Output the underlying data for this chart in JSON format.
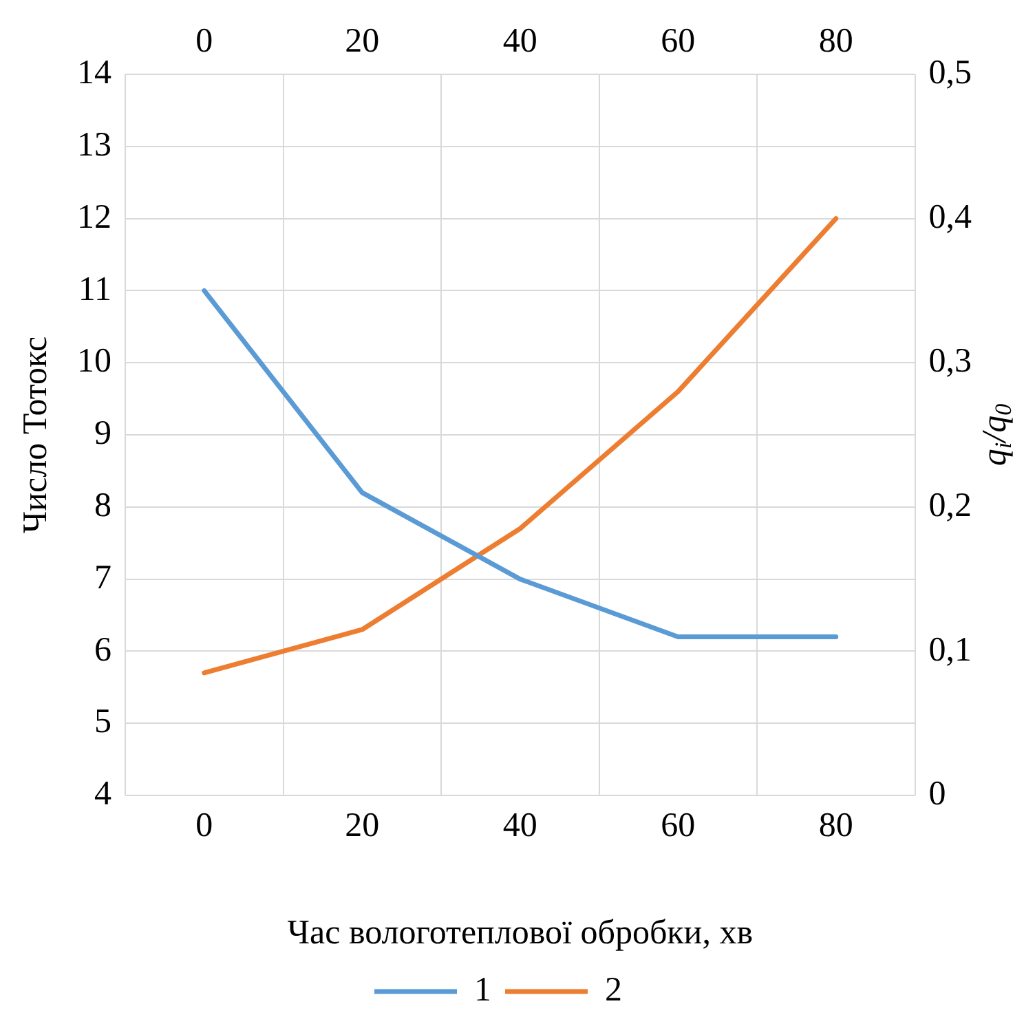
{
  "chart_data": {
    "type": "line",
    "xlabel": "Час вологотеплової обробки, хв",
    "ylabel": "Число Тотокс",
    "y2label": "q$_{i}$/q$_{0}$",
    "categories": [
      "0",
      "20",
      "40",
      "60",
      "80"
    ],
    "series": [
      {
        "name": "1",
        "color": "#5b9bd5",
        "values": [
          11,
          8.2,
          7.0,
          6.2,
          6.2
        ]
      },
      {
        "name": "2",
        "color": "#ed7d31",
        "values": [
          0.085,
          0.115,
          0.185,
          0.28,
          0.4
        ],
        "axis": "y2"
      }
    ],
    "ylim": [
      4,
      14
    ],
    "yticks": [
      4,
      5,
      6,
      7,
      8,
      9,
      10,
      11,
      12,
      13,
      14
    ],
    "y2lim": [
      0,
      0.5
    ],
    "y2ticks": [
      0,
      {
        "value": 0.1,
        "label": "0,1"
      },
      {
        "value": 0.2,
        "label": "0,2"
      },
      {
        "value": 0.3,
        "label": "0,3"
      },
      {
        "value": 0.4,
        "label": "0,4"
      },
      {
        "value": 0.5,
        "label": "0,5"
      }
    ],
    "grid": true,
    "legend": "bottom",
    "marker": "none",
    "line_style": "solid"
  }
}
